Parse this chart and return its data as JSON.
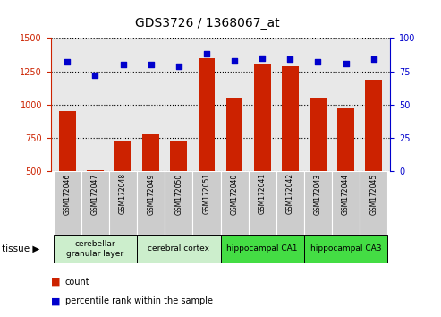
{
  "title": "GDS3726 / 1368067_at",
  "samples": [
    "GSM172046",
    "GSM172047",
    "GSM172048",
    "GSM172049",
    "GSM172050",
    "GSM172051",
    "GSM172040",
    "GSM172041",
    "GSM172042",
    "GSM172043",
    "GSM172044",
    "GSM172045"
  ],
  "counts": [
    950,
    510,
    720,
    780,
    720,
    1350,
    1050,
    1300,
    1290,
    1050,
    975,
    1185
  ],
  "percentiles": [
    82,
    72,
    80,
    80,
    79,
    88,
    83,
    85,
    84,
    82,
    81,
    84
  ],
  "bar_color": "#cc2200",
  "dot_color": "#0000cc",
  "ylim_left": [
    500,
    1500
  ],
  "ylim_right": [
    0,
    100
  ],
  "yticks_left": [
    500,
    750,
    1000,
    1250,
    1500
  ],
  "yticks_right": [
    0,
    25,
    50,
    75,
    100
  ],
  "tissue_groups": [
    {
      "label": "cerebellar\ngranular layer",
      "start": 0,
      "end": 3,
      "color": "#cceecc"
    },
    {
      "label": "cerebral cortex",
      "start": 3,
      "end": 6,
      "color": "#cceecc"
    },
    {
      "label": "hippocampal CA1",
      "start": 6,
      "end": 9,
      "color": "#44dd44"
    },
    {
      "label": "hippocampal CA3",
      "start": 9,
      "end": 12,
      "color": "#44dd44"
    }
  ],
  "legend_count_label": "count",
  "legend_pct_label": "percentile rank within the sample",
  "tissue_label": "tissue",
  "background_color": "#ffffff",
  "plot_bg_color": "#e8e8e8",
  "sample_label_bg": "#cccccc"
}
